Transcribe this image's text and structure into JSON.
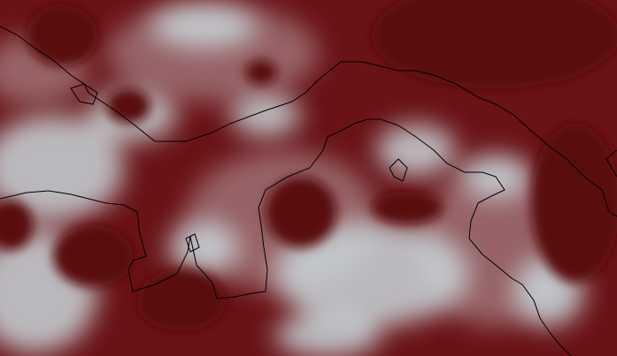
{
  "map": {
    "kind": "satellite-imagery",
    "overlay": "coastlines",
    "colors": {
      "background": "#6a1317",
      "cloud": "#c9d6da",
      "haze": "#a98587",
      "dark_cloud": "#5a0c10",
      "coastline": "#000000"
    }
  }
}
